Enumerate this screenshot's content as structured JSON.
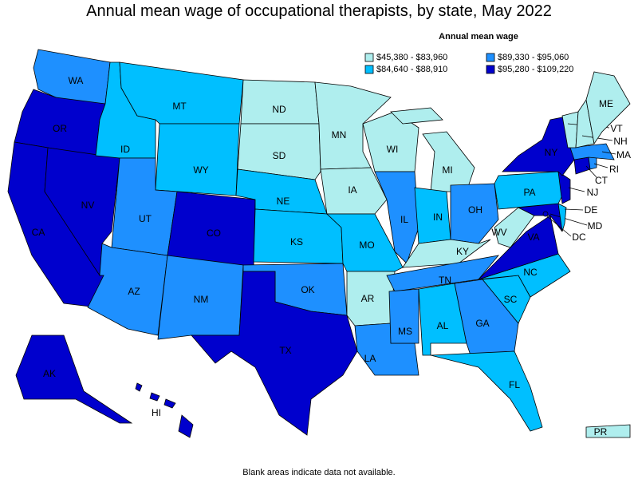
{
  "title": "Annual mean wage of occupational therapists, by state, May 2022",
  "legend": {
    "title": "Annual mean wage",
    "items": [
      {
        "label": "$45,380 - $83,960",
        "color": "#afeeee"
      },
      {
        "label": "$84,640 - $88,910",
        "color": "#00bfff"
      },
      {
        "label": "$89,330 - $95,060",
        "color": "#1e90ff"
      },
      {
        "label": "$95,280 - $109,220",
        "color": "#0000cd"
      }
    ]
  },
  "states": [
    {
      "name": "WA",
      "color": "#1e90ff"
    },
    {
      "name": "OR",
      "color": "#0000cd"
    },
    {
      "name": "CA",
      "color": "#0000cd"
    },
    {
      "name": "NV",
      "color": "#0000cd"
    },
    {
      "name": "ID",
      "color": "#00bfff"
    },
    {
      "name": "MT",
      "color": "#00bfff"
    },
    {
      "name": "WY",
      "color": "#00bfff"
    },
    {
      "name": "UT",
      "color": "#1e90ff"
    },
    {
      "name": "CO",
      "color": "#0000cd"
    },
    {
      "name": "AZ",
      "color": "#1e90ff"
    },
    {
      "name": "NM",
      "color": "#1e90ff"
    },
    {
      "name": "ND",
      "color": "#afeeee"
    },
    {
      "name": "SD",
      "color": "#afeeee"
    },
    {
      "name": "NE",
      "color": "#00bfff"
    },
    {
      "name": "KS",
      "color": "#00bfff"
    },
    {
      "name": "OK",
      "color": "#1e90ff"
    },
    {
      "name": "TX",
      "color": "#0000cd"
    },
    {
      "name": "MN",
      "color": "#afeeee"
    },
    {
      "name": "IA",
      "color": "#afeeee"
    },
    {
      "name": "MO",
      "color": "#00bfff"
    },
    {
      "name": "AR",
      "color": "#afeeee"
    },
    {
      "name": "LA",
      "color": "#1e90ff"
    },
    {
      "name": "WI",
      "color": "#afeeee"
    },
    {
      "name": "IL",
      "color": "#1e90ff"
    },
    {
      "name": "MI",
      "color": "#afeeee"
    },
    {
      "name": "IN",
      "color": "#00bfff"
    },
    {
      "name": "OH",
      "color": "#1e90ff"
    },
    {
      "name": "KY",
      "color": "#afeeee"
    },
    {
      "name": "TN",
      "color": "#1e90ff"
    },
    {
      "name": "MS",
      "color": "#1e90ff"
    },
    {
      "name": "AL",
      "color": "#00bfff"
    },
    {
      "name": "GA",
      "color": "#1e90ff"
    },
    {
      "name": "FL",
      "color": "#00bfff"
    },
    {
      "name": "SC",
      "color": "#00bfff"
    },
    {
      "name": "NC",
      "color": "#00bfff"
    },
    {
      "name": "VA",
      "color": "#0000cd"
    },
    {
      "name": "WV",
      "color": "#afeeee"
    },
    {
      "name": "MD",
      "color": "#0000cd"
    },
    {
      "name": "DE",
      "color": "#00bfff"
    },
    {
      "name": "PA",
      "color": "#00bfff"
    },
    {
      "name": "NJ",
      "color": "#0000cd"
    },
    {
      "name": "NY",
      "color": "#0000cd"
    },
    {
      "name": "CT",
      "color": "#0000cd"
    },
    {
      "name": "RI",
      "color": "#1e90ff"
    },
    {
      "name": "MA",
      "color": "#1e90ff"
    },
    {
      "name": "VT",
      "color": "#afeeee"
    },
    {
      "name": "NH",
      "color": "#afeeee"
    },
    {
      "name": "ME",
      "color": "#afeeee"
    },
    {
      "name": "AK",
      "color": "#0000cd"
    },
    {
      "name": "HI",
      "color": "#0000cd"
    },
    {
      "name": "PR",
      "color": "#afeeee"
    },
    {
      "name": "DC",
      "color": "#0000cd"
    }
  ],
  "footnote": "Blank areas indicate data not available."
}
